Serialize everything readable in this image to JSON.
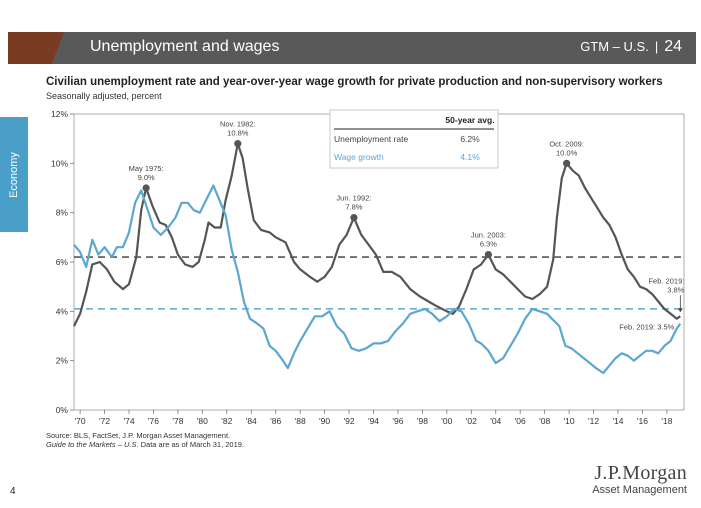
{
  "header": {
    "title": "Unemployment and wages",
    "section": "GTM – U.S.",
    "page": "24"
  },
  "side_tab": {
    "label": "Economy"
  },
  "chart_data": {
    "type": "line",
    "title": "Civilian unemployment rate and year-over-year wage growth for private production and non-supervisory workers",
    "subtitle": "Seasonally adjusted, percent",
    "x_ticks": [
      "'70",
      "'72",
      "'74",
      "'76",
      "'78",
      "'80",
      "'82",
      "'84",
      "'86",
      "'88",
      "'90",
      "'92",
      "'94",
      "'96",
      "'98",
      "'00",
      "'02",
      "'04",
      "'06",
      "'08",
      "'10",
      "'12",
      "'14",
      "'16",
      "'18"
    ],
    "x_range": [
      1969.5,
      2019.4
    ],
    "y_ticks": [
      "0%",
      "2%",
      "4%",
      "6%",
      "8%",
      "10%",
      "12%"
    ],
    "ylim": [
      0,
      12
    ],
    "series": [
      {
        "name": "Unemployment rate",
        "color": "#555555",
        "points": [
          [
            1969.5,
            3.4
          ],
          [
            1970.0,
            3.9
          ],
          [
            1970.5,
            4.8
          ],
          [
            1971.0,
            5.9
          ],
          [
            1971.6,
            6.0
          ],
          [
            1972.2,
            5.7
          ],
          [
            1972.8,
            5.2
          ],
          [
            1973.5,
            4.9
          ],
          [
            1974.0,
            5.1
          ],
          [
            1974.6,
            6.2
          ],
          [
            1975.0,
            8.1
          ],
          [
            1975.4,
            9.0
          ],
          [
            1975.9,
            8.3
          ],
          [
            1976.5,
            7.6
          ],
          [
            1977.0,
            7.5
          ],
          [
            1977.5,
            7.0
          ],
          [
            1978.0,
            6.3
          ],
          [
            1978.6,
            5.9
          ],
          [
            1979.2,
            5.8
          ],
          [
            1979.7,
            6.0
          ],
          [
            1980.2,
            6.9
          ],
          [
            1980.5,
            7.6
          ],
          [
            1981.0,
            7.4
          ],
          [
            1981.5,
            7.4
          ],
          [
            1981.9,
            8.5
          ],
          [
            1982.4,
            9.5
          ],
          [
            1982.9,
            10.8
          ],
          [
            1983.3,
            10.2
          ],
          [
            1983.7,
            9.0
          ],
          [
            1984.2,
            7.7
          ],
          [
            1984.8,
            7.3
          ],
          [
            1985.5,
            7.2
          ],
          [
            1986.0,
            7.0
          ],
          [
            1986.8,
            6.8
          ],
          [
            1987.5,
            6.0
          ],
          [
            1988.0,
            5.7
          ],
          [
            1988.8,
            5.4
          ],
          [
            1989.4,
            5.2
          ],
          [
            1990.0,
            5.4
          ],
          [
            1990.6,
            5.8
          ],
          [
            1991.2,
            6.7
          ],
          [
            1991.8,
            7.1
          ],
          [
            1992.4,
            7.8
          ],
          [
            1993.0,
            7.1
          ],
          [
            1993.6,
            6.7
          ],
          [
            1994.2,
            6.3
          ],
          [
            1994.8,
            5.6
          ],
          [
            1995.5,
            5.6
          ],
          [
            1996.2,
            5.4
          ],
          [
            1997.0,
            4.9
          ],
          [
            1997.8,
            4.6
          ],
          [
            1998.5,
            4.4
          ],
          [
            1999.2,
            4.2
          ],
          [
            2000.0,
            4.0
          ],
          [
            2000.5,
            3.9
          ],
          [
            2001.0,
            4.2
          ],
          [
            2001.6,
            4.9
          ],
          [
            2002.2,
            5.7
          ],
          [
            2002.8,
            5.9
          ],
          [
            2003.4,
            6.3
          ],
          [
            2004.0,
            5.7
          ],
          [
            2004.6,
            5.5
          ],
          [
            2005.2,
            5.2
          ],
          [
            2005.8,
            4.9
          ],
          [
            2006.4,
            4.6
          ],
          [
            2007.0,
            4.5
          ],
          [
            2007.6,
            4.7
          ],
          [
            2008.2,
            5.0
          ],
          [
            2008.7,
            6.1
          ],
          [
            2009.0,
            7.8
          ],
          [
            2009.4,
            9.4
          ],
          [
            2009.8,
            10.0
          ],
          [
            2010.3,
            9.7
          ],
          [
            2010.8,
            9.5
          ],
          [
            2011.3,
            9.0
          ],
          [
            2011.8,
            8.6
          ],
          [
            2012.3,
            8.2
          ],
          [
            2012.8,
            7.8
          ],
          [
            2013.3,
            7.5
          ],
          [
            2013.8,
            7.0
          ],
          [
            2014.3,
            6.3
          ],
          [
            2014.8,
            5.7
          ],
          [
            2015.3,
            5.4
          ],
          [
            2015.8,
            5.0
          ],
          [
            2016.3,
            4.9
          ],
          [
            2016.8,
            4.7
          ],
          [
            2017.3,
            4.4
          ],
          [
            2017.8,
            4.1
          ],
          [
            2018.3,
            3.9
          ],
          [
            2018.8,
            3.7
          ],
          [
            2019.1,
            3.8
          ]
        ]
      },
      {
        "name": "Wage growth",
        "color": "#5ba7d1",
        "points": [
          [
            1969.5,
            6.7
          ],
          [
            1970.0,
            6.4
          ],
          [
            1970.5,
            5.8
          ],
          [
            1971.0,
            6.9
          ],
          [
            1971.5,
            6.3
          ],
          [
            1972.0,
            6.6
          ],
          [
            1972.6,
            6.2
          ],
          [
            1973.0,
            6.6
          ],
          [
            1973.5,
            6.6
          ],
          [
            1974.0,
            7.2
          ],
          [
            1974.5,
            8.4
          ],
          [
            1975.0,
            8.9
          ],
          [
            1975.6,
            8.0
          ],
          [
            1976.0,
            7.4
          ],
          [
            1976.6,
            7.1
          ],
          [
            1977.2,
            7.4
          ],
          [
            1977.8,
            7.8
          ],
          [
            1978.3,
            8.4
          ],
          [
            1978.8,
            8.4
          ],
          [
            1979.3,
            8.1
          ],
          [
            1979.8,
            8.0
          ],
          [
            1980.4,
            8.6
          ],
          [
            1980.9,
            9.1
          ],
          [
            1981.4,
            8.5
          ],
          [
            1981.9,
            7.9
          ],
          [
            1982.4,
            6.5
          ],
          [
            1982.9,
            5.6
          ],
          [
            1983.4,
            4.4
          ],
          [
            1983.9,
            3.7
          ],
          [
            1984.5,
            3.5
          ],
          [
            1985.0,
            3.3
          ],
          [
            1985.5,
            2.6
          ],
          [
            1986.0,
            2.4
          ],
          [
            1986.6,
            2.0
          ],
          [
            1987.0,
            1.7
          ],
          [
            1987.5,
            2.3
          ],
          [
            1988.0,
            2.8
          ],
          [
            1988.6,
            3.3
          ],
          [
            1989.2,
            3.8
          ],
          [
            1989.8,
            3.8
          ],
          [
            1990.4,
            4.0
          ],
          [
            1991.0,
            3.4
          ],
          [
            1991.6,
            3.1
          ],
          [
            1992.2,
            2.5
          ],
          [
            1992.8,
            2.4
          ],
          [
            1993.4,
            2.5
          ],
          [
            1994.0,
            2.7
          ],
          [
            1994.6,
            2.7
          ],
          [
            1995.2,
            2.8
          ],
          [
            1995.8,
            3.2
          ],
          [
            1996.4,
            3.5
          ],
          [
            1997.0,
            3.9
          ],
          [
            1997.6,
            4.0
          ],
          [
            1998.2,
            4.1
          ],
          [
            1998.8,
            3.9
          ],
          [
            1999.4,
            3.6
          ],
          [
            2000.0,
            3.8
          ],
          [
            2000.6,
            4.1
          ],
          [
            2001.2,
            4.0
          ],
          [
            2001.8,
            3.5
          ],
          [
            2002.4,
            2.8
          ],
          [
            2002.8,
            2.7
          ],
          [
            2003.4,
            2.4
          ],
          [
            2004.0,
            1.9
          ],
          [
            2004.6,
            2.1
          ],
          [
            2005.2,
            2.6
          ],
          [
            2005.8,
            3.1
          ],
          [
            2006.4,
            3.7
          ],
          [
            2007.0,
            4.1
          ],
          [
            2007.6,
            4.0
          ],
          [
            2008.2,
            3.9
          ],
          [
            2008.8,
            3.6
          ],
          [
            2009.2,
            3.4
          ],
          [
            2009.7,
            2.6
          ],
          [
            2010.2,
            2.5
          ],
          [
            2010.7,
            2.3
          ],
          [
            2011.2,
            2.1
          ],
          [
            2011.7,
            1.9
          ],
          [
            2012.2,
            1.7
          ],
          [
            2012.8,
            1.5
          ],
          [
            2013.3,
            1.8
          ],
          [
            2013.8,
            2.1
          ],
          [
            2014.3,
            2.3
          ],
          [
            2014.8,
            2.2
          ],
          [
            2015.3,
            2.0
          ],
          [
            2015.8,
            2.2
          ],
          [
            2016.3,
            2.4
          ],
          [
            2016.8,
            2.4
          ],
          [
            2017.3,
            2.3
          ],
          [
            2017.8,
            2.6
          ],
          [
            2018.3,
            2.8
          ],
          [
            2018.8,
            3.3
          ],
          [
            2019.1,
            3.5
          ]
        ]
      }
    ],
    "averages": {
      "header": "50-year avg.",
      "unemployment": {
        "label": "Unemployment rate",
        "value": "6.2%",
        "y": 6.2
      },
      "wage": {
        "label": "Wage growth",
        "value": "4.1%",
        "y": 4.1
      }
    },
    "annotations": [
      {
        "series": 0,
        "x": 1975.4,
        "y": 9.0,
        "line1": "May 1975:",
        "line2": "9.0%",
        "marker": true
      },
      {
        "series": 0,
        "x": 1982.9,
        "y": 10.8,
        "line1": "Nov. 1982:",
        "line2": "10.8%",
        "marker": true
      },
      {
        "series": 0,
        "x": 1992.4,
        "y": 7.8,
        "line1": "Jun. 1992:",
        "line2": "7.8%",
        "marker": true
      },
      {
        "series": 0,
        "x": 2003.4,
        "y": 6.3,
        "line1": "Jun. 2003:",
        "line2": "6.3%",
        "marker": true
      },
      {
        "series": 0,
        "x": 2009.8,
        "y": 10.0,
        "line1": "Oct. 2009:",
        "line2": "10.0%",
        "marker": true
      },
      {
        "series": 0,
        "x": 2019.1,
        "y": 3.8,
        "line1": "Feb. 2019:",
        "line2": "3.8%",
        "marker": false
      },
      {
        "series": 1,
        "x": 2019.1,
        "y": 3.5,
        "line1": "Feb. 2019: 3.5%",
        "line2": "",
        "marker": false
      }
    ]
  },
  "footnotes": {
    "source": "Source: BLS, FactSet, J.P. Morgan Asset Management.",
    "guide_title": "Guide to the Markets – U.S.",
    "guide_rest": " Data are as of March 31, 2019."
  },
  "page_number": "4",
  "logo": {
    "line1": "J.P.Morgan",
    "line2": "Asset Management"
  }
}
